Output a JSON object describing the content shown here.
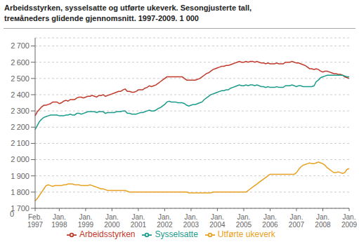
{
  "chart_data": {
    "type": "line",
    "title": "Arbeidsstyrken, sysselsatte og utførte ukeverk. Sesongjusterte tall,",
    "subtitle": "trемåneders glidende gjennomsnitt. 1997-2009. 1 000",
    "categories": [
      "Feb.\n1997",
      null,
      null,
      null,
      null,
      null,
      null,
      null,
      null,
      null,
      null,
      "Jan.\n1998",
      null,
      null,
      null,
      null,
      null,
      null,
      null,
      null,
      null,
      null,
      null,
      "Jan.\n1999",
      null,
      null,
      null,
      null,
      null,
      null,
      null,
      null,
      null,
      null,
      null,
      "Jan.\n2000",
      null,
      null,
      null,
      null,
      null,
      null,
      null,
      null,
      null,
      null,
      null,
      "Jan.\n2001",
      null,
      null,
      null,
      null,
      null,
      null,
      null,
      null,
      null,
      null,
      null,
      "Jan.\n2002",
      null,
      null,
      null,
      null,
      null,
      null,
      null,
      null,
      null,
      null,
      null,
      "Jan.\n2003",
      null,
      null,
      null,
      null,
      null,
      null,
      null,
      null,
      null,
      null,
      null,
      "Jan.\n2004",
      null,
      null,
      null,
      null,
      null,
      null,
      null,
      null,
      null,
      null,
      null,
      "Jan.\n2005",
      null,
      null,
      null,
      null,
      null,
      null,
      null,
      null,
      null,
      null,
      null,
      "Jan.\n2006",
      null,
      null,
      null,
      null,
      null,
      null,
      null,
      null,
      null,
      null,
      null,
      "Jan.\n2007",
      null,
      null,
      null,
      null,
      null,
      null,
      null,
      null,
      null,
      null,
      null,
      "Jan.\n2008",
      null,
      null,
      null,
      null,
      null,
      null,
      null,
      null,
      null,
      null,
      null,
      "Jan.\n2009"
    ],
    "series": [
      {
        "name": "Arbeidsstyrken",
        "color": "#c0392b",
        "values": [
          2270,
          2295,
          2310,
          2325,
          2335,
          2335,
          2340,
          2345,
          2355,
          2355,
          2355,
          2345,
          2350,
          2360,
          2365,
          2360,
          2370,
          2370,
          2370,
          2380,
          2385,
          2385,
          2380,
          2385,
          2390,
          2390,
          2395,
          2390,
          2385,
          2395,
          2395,
          2400,
          2390,
          2395,
          2400,
          2405,
          2410,
          2415,
          2420,
          2420,
          2430,
          2435,
          2420,
          2420,
          2415,
          2415,
          2420,
          2430,
          2430,
          2430,
          2440,
          2445,
          2455,
          2450,
          2455,
          2460,
          2470,
          2480,
          2490,
          2500,
          2510,
          2510,
          2510,
          2510,
          2510,
          2510,
          2510,
          2510,
          2500,
          2490,
          2490,
          2490,
          2490,
          2490,
          2495,
          2500,
          2510,
          2520,
          2530,
          2535,
          2545,
          2555,
          2560,
          2565,
          2570,
          2575,
          2575,
          2580,
          2580,
          2585,
          2590,
          2595,
          2600,
          2605,
          2600,
          2600,
          2605,
          2600,
          2605,
          2605,
          2600,
          2605,
          2600,
          2595,
          2595,
          2590,
          2595,
          2590,
          2590,
          2590,
          2595,
          2590,
          2590,
          2590,
          2600,
          2600,
          2600,
          2605,
          2600,
          2595,
          2595,
          2590,
          2585,
          2580,
          2570,
          2560,
          2560,
          2555,
          2560,
          2555,
          2545,
          2540,
          2545,
          2545,
          2540,
          2535,
          2530,
          2530,
          2525,
          2525,
          2520,
          2510,
          2505,
          2500
        ]
      },
      {
        "name": "Sysselsatte",
        "color": "#1a9b8a",
        "values": [
          2185,
          2210,
          2235,
          2250,
          2260,
          2265,
          2270,
          2275,
          2275,
          2275,
          2275,
          2270,
          2270,
          2270,
          2275,
          2275,
          2280,
          2275,
          2275,
          2285,
          2285,
          2280,
          2285,
          2290,
          2295,
          2295,
          2295,
          2295,
          2290,
          2295,
          2295,
          2295,
          2285,
          2290,
          2290,
          2290,
          2290,
          2295,
          2295,
          2295,
          2300,
          2300,
          2285,
          2285,
          2280,
          2280,
          2280,
          2285,
          2290,
          2290,
          2295,
          2300,
          2305,
          2300,
          2300,
          2305,
          2315,
          2320,
          2330,
          2340,
          2355,
          2360,
          2355,
          2355,
          2355,
          2350,
          2350,
          2350,
          2345,
          2335,
          2330,
          2335,
          2340,
          2340,
          2345,
          2350,
          2355,
          2370,
          2380,
          2390,
          2400,
          2405,
          2410,
          2415,
          2420,
          2425,
          2425,
          2430,
          2430,
          2440,
          2445,
          2450,
          2455,
          2460,
          2455,
          2455,
          2460,
          2455,
          2460,
          2460,
          2455,
          2460,
          2455,
          2450,
          2450,
          2445,
          2450,
          2445,
          2445,
          2445,
          2450,
          2445,
          2445,
          2445,
          2455,
          2455,
          2455,
          2460,
          2455,
          2450,
          2455,
          2455,
          2450,
          2450,
          2450,
          2450,
          2450,
          2455,
          2480,
          2490,
          2505,
          2510,
          2515,
          2520,
          2520,
          2520,
          2520,
          2520,
          2520,
          2520,
          2520,
          2515,
          2510,
          2510
        ]
      },
      {
        "name": "Utførte ukeverk",
        "color": "#e8a020",
        "values": [
          1745,
          1760,
          1780,
          1800,
          1820,
          1840,
          1845,
          1840,
          1835,
          1840,
          1840,
          1840,
          1840,
          1845,
          1845,
          1850,
          1850,
          1850,
          1845,
          1845,
          1845,
          1840,
          1840,
          1840,
          1840,
          1845,
          1840,
          1835,
          1830,
          1825,
          1820,
          1820,
          1815,
          1810,
          1810,
          1810,
          1810,
          1810,
          1810,
          1810,
          1810,
          1810,
          1805,
          1800,
          1800,
          1800,
          1800,
          1800,
          1800,
          1800,
          1800,
          1800,
          1800,
          1800,
          1800,
          1800,
          1800,
          1800,
          1800,
          1800,
          1800,
          1800,
          1800,
          1800,
          1800,
          1800,
          1800,
          1800,
          1800,
          1800,
          1795,
          1795,
          1795,
          1795,
          1795,
          1795,
          1795,
          1795,
          1795,
          1795,
          1795,
          1800,
          1800,
          1800,
          1800,
          1800,
          1800,
          1800,
          1800,
          1800,
          1800,
          1800,
          1800,
          1800,
          1800,
          1800,
          1800,
          1810,
          1820,
          1830,
          1840,
          1850,
          1860,
          1870,
          1880,
          1890,
          1900,
          1910,
          1910,
          1910,
          1910,
          1910,
          1910,
          1910,
          1910,
          1910,
          1910,
          1910,
          1910,
          1920,
          1940,
          1955,
          1965,
          1970,
          1975,
          1980,
          1975,
          1975,
          1980,
          1985,
          1980,
          1975,
          1965,
          1950,
          1940,
          1930,
          1920,
          1920,
          1925,
          1920,
          1915,
          1920,
          1940,
          1945
        ]
      }
    ],
    "ylim": [
      1700,
      2750
    ],
    "yticks": [
      {
        "value": 1700,
        "label": "1 700"
      },
      {
        "value": 1800,
        "label": "1 800"
      },
      {
        "value": 1900,
        "label": "1 900"
      },
      {
        "value": 2000,
        "label": "2 000"
      },
      {
        "value": 2100,
        "label": "2 100"
      },
      {
        "value": 2200,
        "label": "2 200"
      },
      {
        "value": 2300,
        "label": "2 300"
      },
      {
        "value": 2400,
        "label": "2 400"
      },
      {
        "value": 2500,
        "label": "2 500"
      },
      {
        "value": 2600,
        "label": "2 600"
      },
      {
        "value": 2700,
        "label": "2 700"
      }
    ],
    "grid": true,
    "legend": "bottom",
    "annotations": [
      {
        "text": "0"
      }
    ]
  }
}
